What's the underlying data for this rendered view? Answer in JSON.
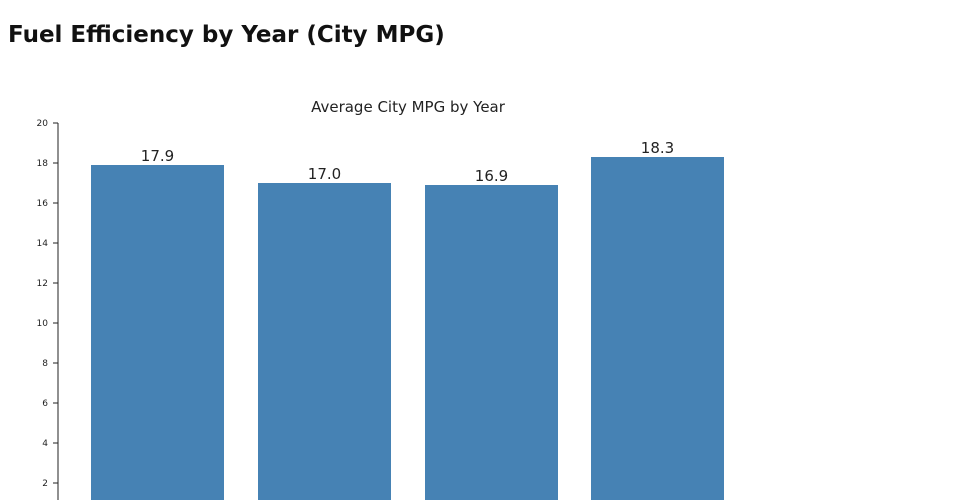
{
  "page": {
    "title": "Fuel Efficiency by Year (City MPG)"
  },
  "chart_data": {
    "type": "bar",
    "title": "Average City MPG by Year",
    "xlabel": "",
    "ylabel": "",
    "categories": [
      "",
      "",
      "",
      ""
    ],
    "values": [
      17.9,
      17.0,
      16.9,
      18.3
    ],
    "data_labels": [
      "17.9",
      "17.0",
      "16.9",
      "18.3"
    ],
    "ylim": [
      0,
      20
    ],
    "y_ticks": [
      2,
      4,
      6,
      8,
      10,
      12,
      14,
      16,
      18,
      20
    ],
    "y_tick_labels": [
      "2",
      "4",
      "6",
      "8",
      "10",
      "12",
      "14",
      "16",
      "18",
      "20"
    ],
    "grid": false,
    "legend": "none",
    "bar_color": "#4682b4"
  }
}
